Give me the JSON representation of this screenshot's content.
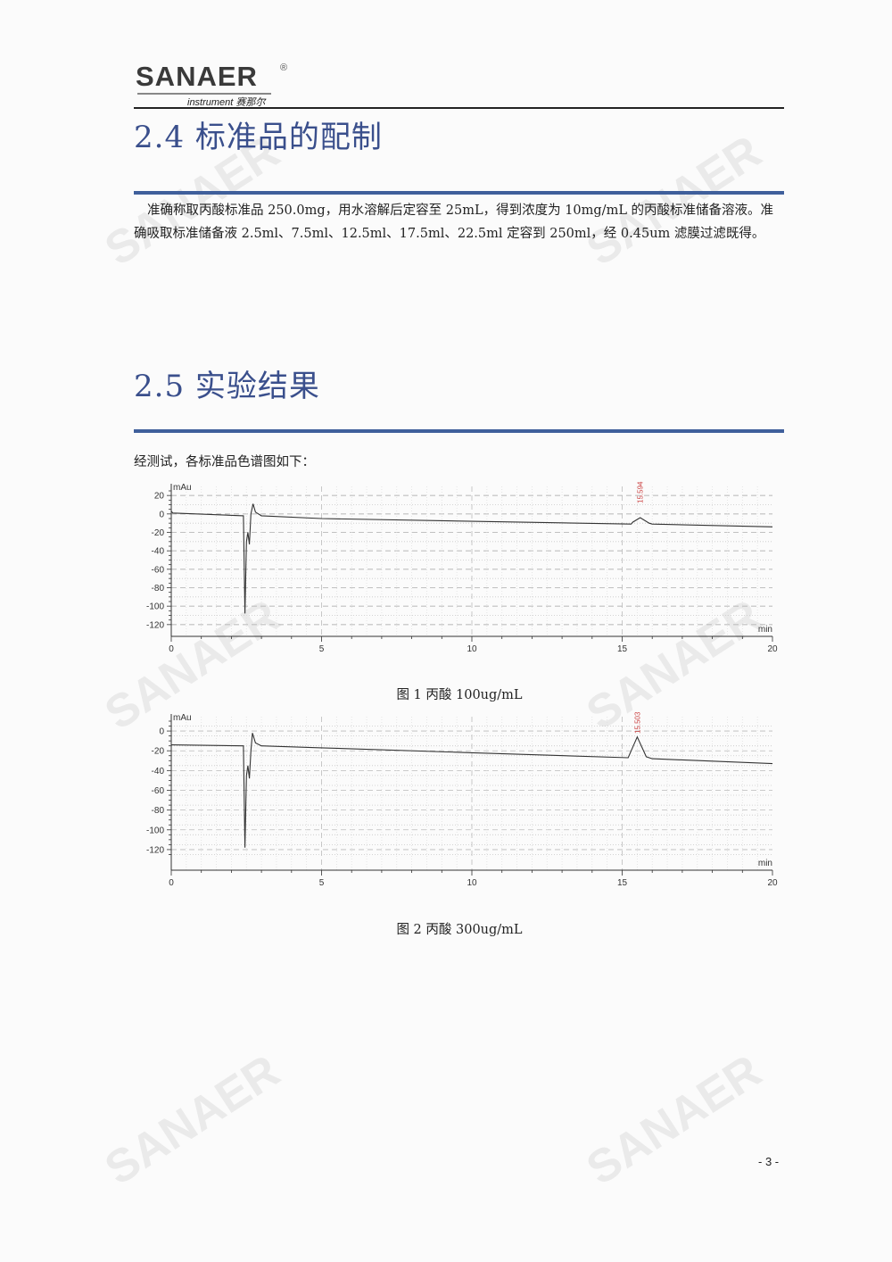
{
  "logo": {
    "name": "SANAER",
    "sub": "instrument 赛那尔",
    "reg": "®"
  },
  "section_24": {
    "title": "2.4 标准品的配制",
    "paragraph": "准确称取丙酸标准品 250.0mg，用水溶解后定容至 25mL，得到浓度为 10mg/mL 的丙酸标准储备溶液。准确吸取标准储备液 2.5ml、7.5ml、12.5ml、17.5ml、22.5ml 定容到 250ml，经 0.45um 滤膜过滤既得。"
  },
  "section_25": {
    "title": "2.5 实验结果",
    "intro": "经测试，各标准品色谱图如下："
  },
  "chart_data": [
    {
      "type": "line",
      "caption": "图 1 丙酸 100ug/mL",
      "ylabel": "mAu",
      "xlabel": "min",
      "xlim": [
        0,
        20
      ],
      "ylim": [
        -125,
        25
      ],
      "yticks": [
        20,
        0,
        -20,
        -40,
        -60,
        -80,
        -100,
        -120
      ],
      "xticks": [
        0,
        5,
        10,
        15,
        20
      ],
      "grid": true,
      "peak_label": "15.594",
      "peak_x": 15.594,
      "x": [
        0,
        0.05,
        2.4,
        2.45,
        2.5,
        2.55,
        2.6,
        2.65,
        2.72,
        2.8,
        3.0,
        5,
        10,
        15.3,
        15.35,
        15.6,
        15.9,
        16,
        20
      ],
      "y": [
        3,
        1,
        -2,
        -108,
        -30,
        -20,
        -33,
        0,
        11,
        2,
        -2,
        -5,
        -8,
        -11,
        -9,
        -4,
        -10,
        -11,
        -14
      ]
    },
    {
      "type": "line",
      "caption": "图 2 丙酸 300ug/mL",
      "ylabel": "mAu",
      "xlabel": "min",
      "xlim": [
        0,
        20
      ],
      "ylim": [
        -130,
        10
      ],
      "yticks": [
        0,
        -20,
        -40,
        -60,
        -80,
        -100,
        -120
      ],
      "xticks": [
        0,
        5,
        10,
        15,
        20
      ],
      "grid": true,
      "peak_label": "15.503",
      "peak_x": 15.503,
      "x": [
        0,
        2.4,
        2.45,
        2.5,
        2.55,
        2.6,
        2.65,
        2.7,
        2.8,
        3.0,
        5,
        10,
        15.2,
        15.5,
        15.8,
        16,
        20
      ],
      "y": [
        -14,
        -15,
        -118,
        -45,
        -35,
        -48,
        -20,
        -2,
        -12,
        -15,
        -17,
        -22,
        -27,
        -6,
        -26,
        -28,
        -33
      ]
    }
  ],
  "page_number": "- 3 -"
}
